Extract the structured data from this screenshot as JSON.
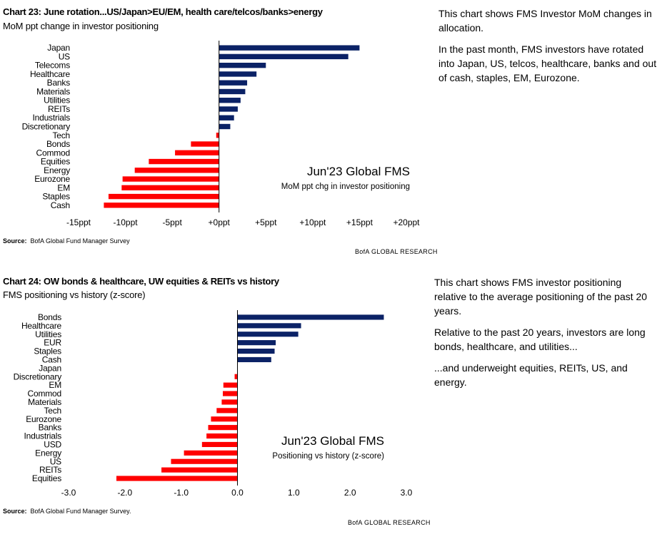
{
  "charts": [
    {
      "title": "Chart 23: June rotation...US/Japan>EU/EM, health care/telcos/banks>energy",
      "subtitle": "MoM ppt change in investor positioning",
      "source_label": "Source:",
      "source_text": "BofA Global Fund Manager Survey",
      "brand": "BofA GLOBAL RESEARCH",
      "commentary": [
        "This chart shows FMS Investor MoM changes in allocation.",
        "In the past month, FMS investors have rotated into Japan, US, telcos, healthcare, banks and out of cash, staples, EM, Eurozone."
      ]
    },
    {
      "title": "Chart 24: OW bonds & healthcare, UW equities & REITs vs history",
      "subtitle": "FMS positioning vs history (z-score)",
      "source_label": "Source:",
      "source_text": "BofA Global Fund Manager Survey.",
      "brand": "BofA GLOBAL RESEARCH",
      "commentary": [
        "This chart shows FMS investor positioning relative to the average positioning of the past 20 years.",
        "Relative to the past 20 years, investors are long bonds, healthcare, and utilities...",
        "...and underweight equities, REITs, US, and energy."
      ]
    }
  ],
  "chart_data": [
    {
      "type": "bar",
      "orientation": "horizontal",
      "inner_title": "Jun'23 Global FMS",
      "inner_subtitle": "MoM ppt chg in investor positioning",
      "categories": [
        "Japan",
        "US",
        "Telecoms",
        "Healthcare",
        "Banks",
        "Materials",
        "Utilities",
        "REITs",
        "Industrials",
        "Discretionary",
        "Tech",
        "Bonds",
        "Commod",
        "Equities",
        "Energy",
        "Eurozone",
        "EM",
        "Staples",
        "Cash"
      ],
      "values": [
        15,
        13.8,
        5,
        4,
        3,
        2.8,
        2.3,
        2,
        1.6,
        1.2,
        -0.3,
        -3,
        -4.7,
        -7.5,
        -9,
        -10.3,
        -10.4,
        -11.8,
        -12.3
      ],
      "xlim": [
        -15,
        20
      ],
      "xticks": [
        -15,
        -10,
        -5,
        0,
        5,
        10,
        15,
        20
      ],
      "xtick_labels": [
        "-15ppt",
        "-10ppt",
        "-5ppt",
        "+0ppt",
        "+5ppt",
        "+10ppt",
        "+15ppt",
        "+20ppt"
      ],
      "positive_color": "#0b2266",
      "negative_color": "#ff0000",
      "grid": false,
      "legend": "none"
    },
    {
      "type": "bar",
      "orientation": "horizontal",
      "inner_title": "Jun'23 Global FMS",
      "inner_subtitle": "Positioning vs history (z-score)",
      "categories": [
        "Bonds",
        "Healthcare",
        "Utilities",
        "EUR",
        "Staples",
        "Cash",
        "Japan",
        "Discretionary",
        "EM",
        "Commod",
        "Materials",
        "Tech",
        "Eurozone",
        "Banks",
        "Industrials",
        "USD",
        "Energy",
        "US",
        "REITs",
        "Equities"
      ],
      "values": [
        2.6,
        1.13,
        1.08,
        0.68,
        0.66,
        0.6,
        0.0,
        -0.05,
        -0.25,
        -0.26,
        -0.28,
        -0.37,
        -0.47,
        -0.52,
        -0.55,
        -0.63,
        -0.95,
        -1.18,
        -1.35,
        -2.15
      ],
      "xlim": [
        -3,
        3
      ],
      "xticks": [
        -3,
        -2,
        -1,
        0,
        1,
        2,
        3
      ],
      "xtick_labels": [
        "-3.0",
        "-2.0",
        "-1.0",
        "0.0",
        "1.0",
        "2.0",
        "3.0"
      ],
      "positive_color": "#0b2266",
      "negative_color": "#ff0000",
      "grid": false,
      "legend": "none"
    }
  ]
}
